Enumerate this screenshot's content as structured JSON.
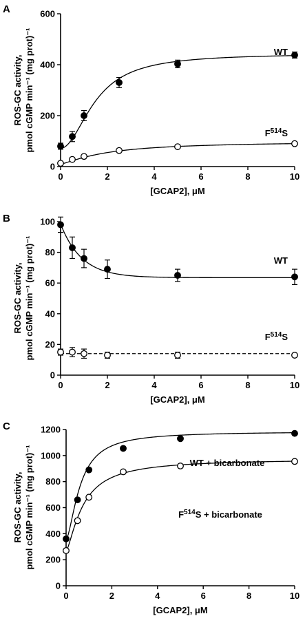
{
  "chart_data": [
    {
      "type": "scatter",
      "panel": "A",
      "title": "",
      "xlabel": "[GCAP2], μM",
      "ylabel_lines": [
        "ROS-GC activity,",
        "pmol cGMP min⁻¹ (mg prot)⁻¹"
      ],
      "xlim": [
        0,
        10
      ],
      "ylim": [
        0,
        600
      ],
      "xticks": [
        "0",
        "2",
        "4",
        "6",
        "8",
        "10"
      ],
      "yticks": [
        "0",
        "200",
        "400",
        "600"
      ],
      "grid": false,
      "series": [
        {
          "name": "WT",
          "marker": "filled",
          "fit": "solid",
          "x": [
            0,
            0.5,
            1,
            2.5,
            5,
            10
          ],
          "y": [
            80,
            118,
            200,
            330,
            403,
            438
          ],
          "err": [
            12,
            20,
            20,
            20,
            15,
            12
          ],
          "curve": {
            "model": "hill",
            "base": 72,
            "amp": 372,
            "k": 1.5,
            "n": 2.0
          }
        },
        {
          "name": "F514S",
          "label": {
            "base": "F",
            "sup": "514",
            "tail": "S"
          },
          "marker": "open",
          "fit": "solid",
          "x": [
            0,
            0.5,
            1,
            2.5,
            5,
            10
          ],
          "y": [
            13,
            28,
            40,
            63,
            78,
            90
          ],
          "err": [
            0,
            0,
            0,
            0,
            0,
            0
          ],
          "curve": {
            "model": "hill",
            "base": 10,
            "amp": 90,
            "k": 2.0,
            "n": 1.3
          }
        }
      ]
    },
    {
      "type": "scatter",
      "panel": "B",
      "title": "",
      "xlabel": "[GCAP2], μM",
      "ylabel_lines": [
        "ROS-GC activity,",
        "pmol cGMP min⁻¹ (mg prot)⁻¹"
      ],
      "xlim": [
        0,
        10
      ],
      "ylim": [
        0,
        100
      ],
      "xticks": [
        "0",
        "2",
        "4",
        "6",
        "8",
        "10"
      ],
      "yticks": [
        "0",
        "20",
        "40",
        "60",
        "80",
        "100"
      ],
      "grid": false,
      "series": [
        {
          "name": "WT",
          "marker": "filled",
          "fit": "solid",
          "x": [
            0,
            0.5,
            1,
            2,
            5,
            10
          ],
          "y": [
            98,
            83,
            76,
            69,
            65,
            64
          ],
          "err": [
            5,
            7,
            6,
            6,
            4,
            5
          ],
          "curve": {
            "model": "decay",
            "base": 63.5,
            "amp": 35,
            "k": 0.9
          }
        },
        {
          "name": "F514S",
          "label": {
            "base": "F",
            "sup": "514",
            "tail": "S"
          },
          "marker": "open",
          "fit": "dashed",
          "x": [
            0,
            0.5,
            1,
            2,
            5,
            10
          ],
          "y": [
            15,
            15,
            14,
            13,
            13,
            13
          ],
          "err": [
            2,
            3,
            3,
            2,
            2,
            0
          ],
          "curve": {
            "model": "flat",
            "value": 14
          }
        }
      ]
    },
    {
      "type": "scatter",
      "panel": "C",
      "title": "",
      "xlabel": "[GCAP2], μM",
      "ylabel_lines": [
        "ROS-GC activity,",
        "pmol cGMP min⁻¹ (mg prot)⁻¹"
      ],
      "xlim": [
        0,
        10
      ],
      "ylim": [
        0,
        1200
      ],
      "xticks": [
        "0",
        "2",
        "4",
        "6",
        "8",
        "10"
      ],
      "yticks": [
        "0",
        "200",
        "400",
        "600",
        "800",
        "1000",
        "1200"
      ],
      "grid": false,
      "series": [
        {
          "name": "WT +  bicarbonate",
          "marker": "filled",
          "fit": "solid",
          "x": [
            0,
            0.5,
            1,
            2.5,
            5,
            10
          ],
          "y": [
            360,
            660,
            890,
            1055,
            1130,
            1170
          ],
          "err": [
            0,
            0,
            0,
            0,
            0,
            0
          ],
          "curve": {
            "model": "hill",
            "base": 355,
            "amp": 830,
            "k": 0.62,
            "n": 1.6
          }
        },
        {
          "name": "F514S + bicarbonate",
          "label": {
            "base": "F",
            "sup": "514",
            "tail": "S + bicarbonate"
          },
          "marker": "open",
          "fit": "solid",
          "x": [
            0,
            0.5,
            1,
            2.5,
            5,
            10
          ],
          "y": [
            270,
            500,
            680,
            875,
            920,
            955
          ],
          "err": [
            0,
            0,
            0,
            0,
            0,
            0
          ],
          "curve": {
            "model": "hill",
            "base": 265,
            "amp": 710,
            "k": 0.75,
            "n": 1.4
          }
        }
      ]
    }
  ]
}
